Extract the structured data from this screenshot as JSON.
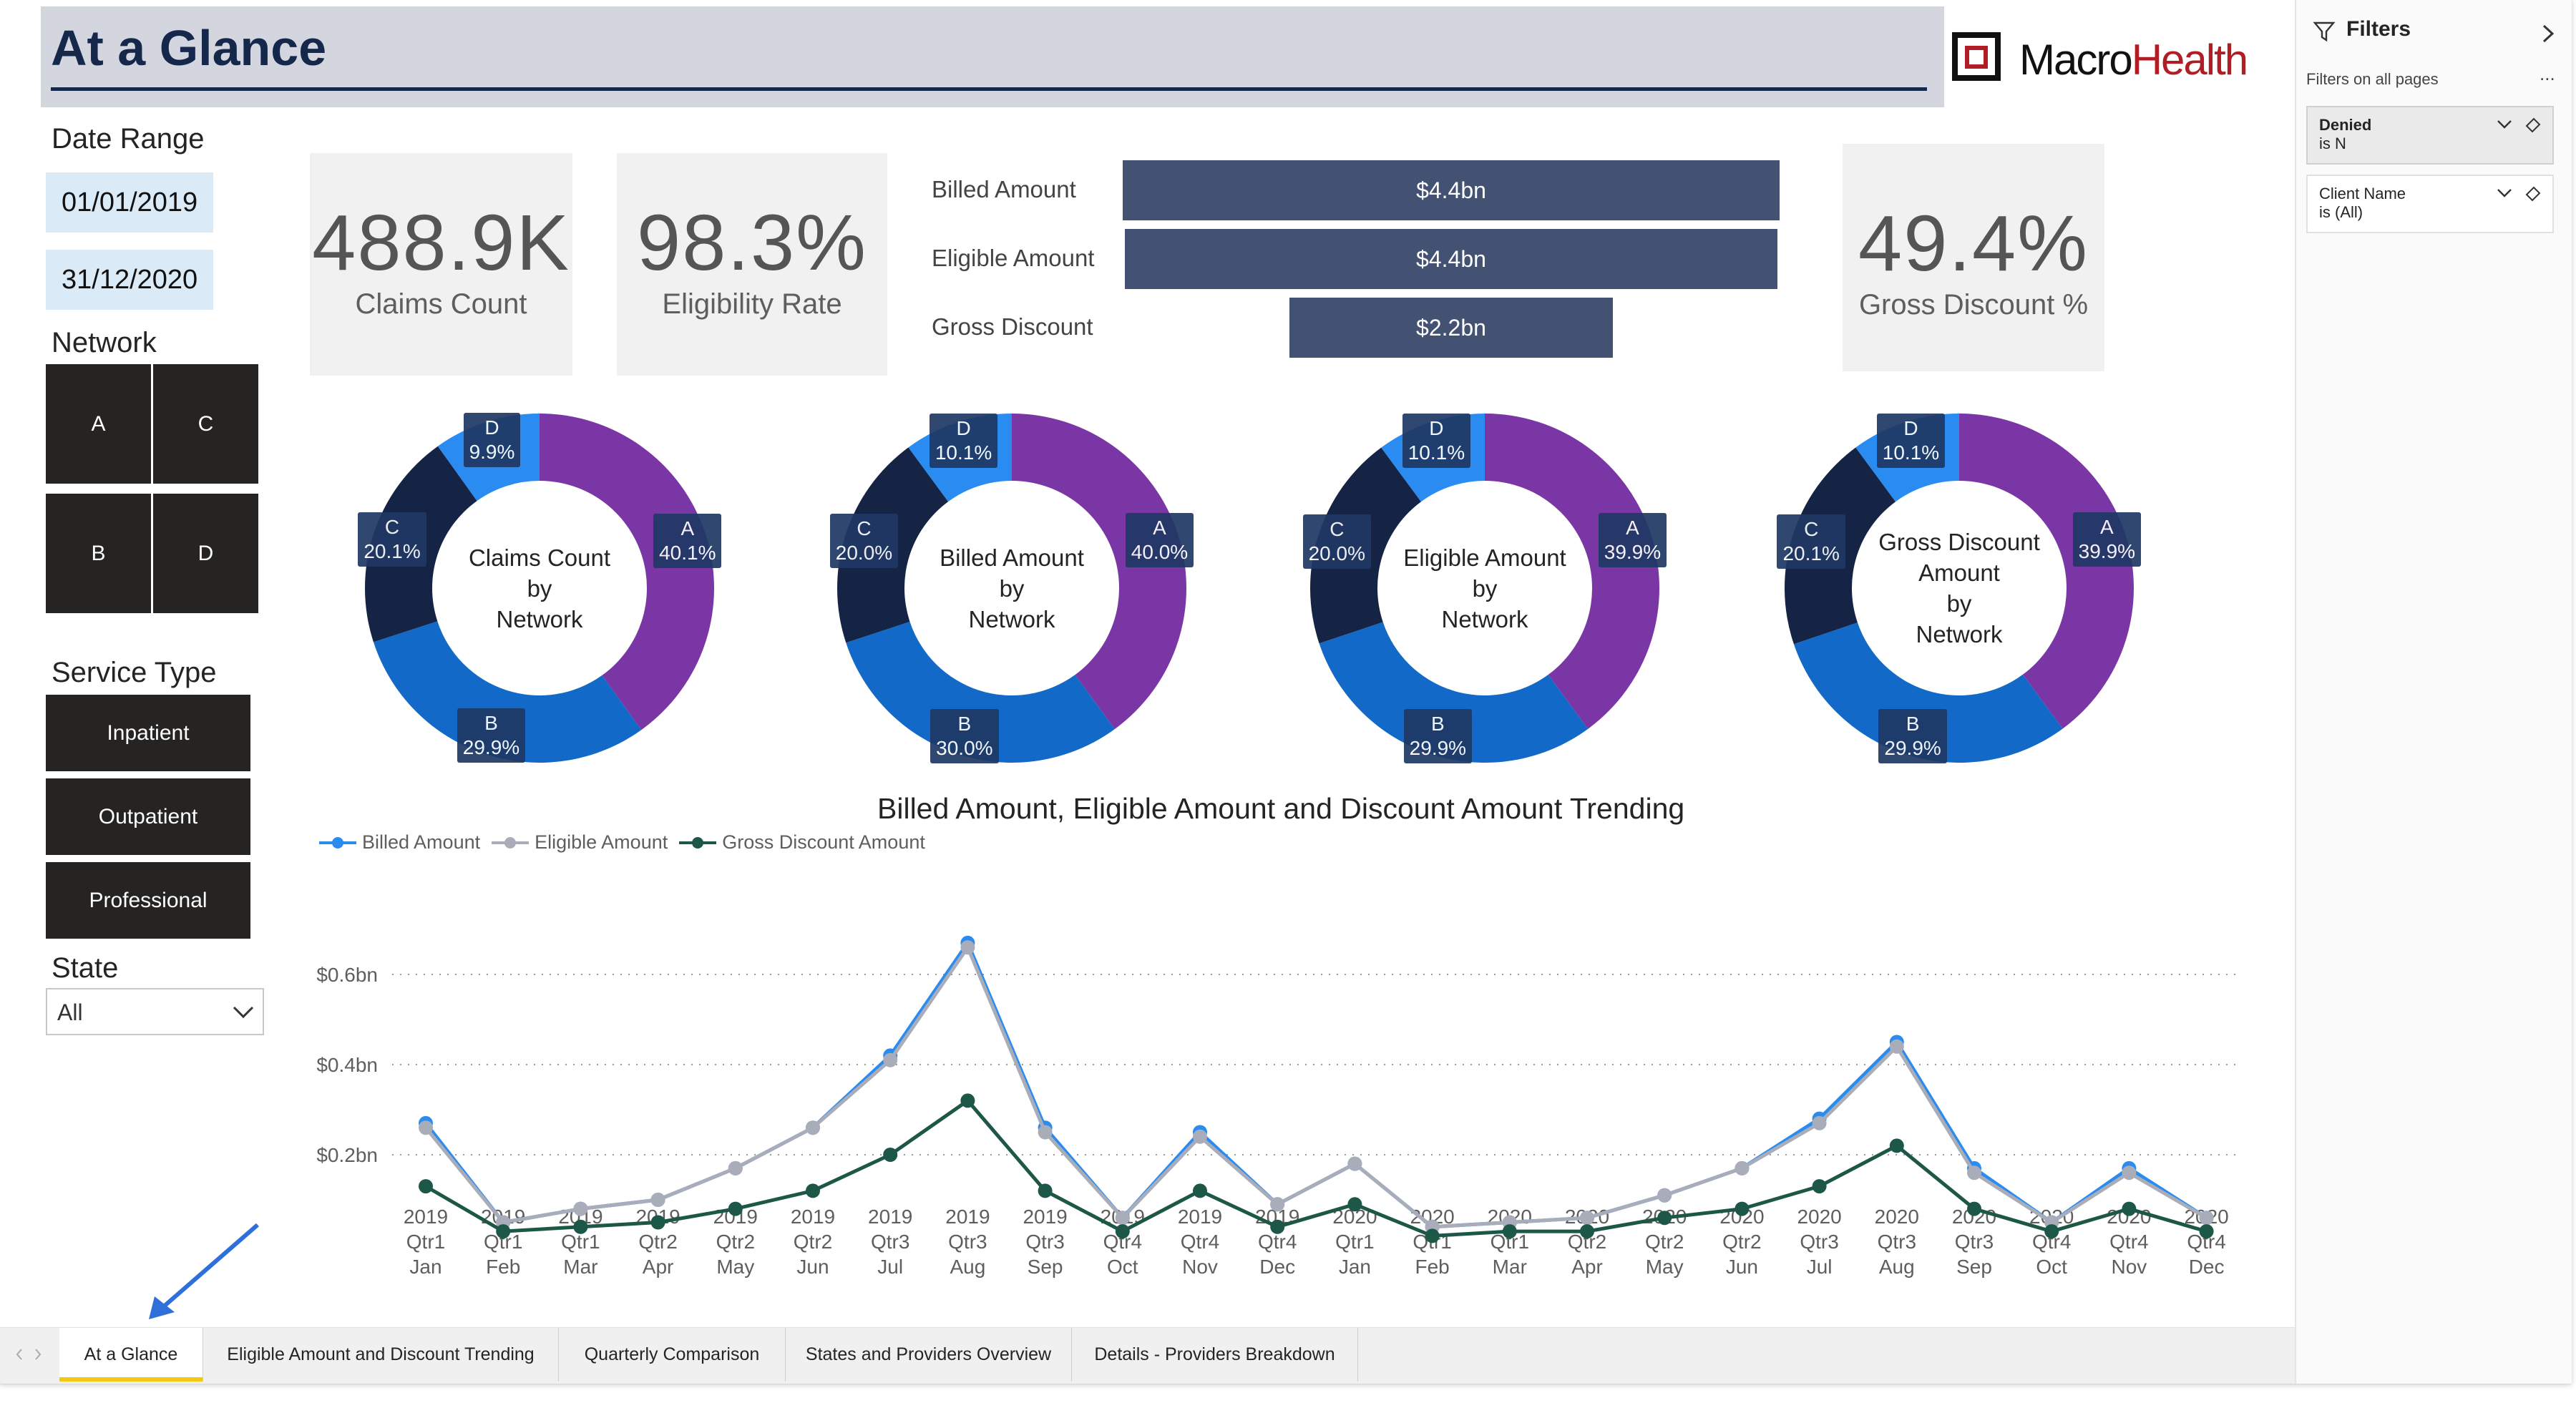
{
  "page": {
    "title": "At a Glance"
  },
  "logo": {
    "text_dark": "Macro",
    "text_red": "Health"
  },
  "date_range": {
    "label": "Date Range",
    "start": "01/01/2019",
    "end": "31/12/2020"
  },
  "network": {
    "label": "Network",
    "tiles": [
      "A",
      "C",
      "B",
      "D"
    ]
  },
  "service_type": {
    "label": "Service Type",
    "options": [
      "Inpatient",
      "Outpatient",
      "Professional"
    ]
  },
  "state": {
    "label": "State",
    "value": "All"
  },
  "kpis": {
    "claims": {
      "value": "488.9K",
      "caption": "Claims Count"
    },
    "eligibility": {
      "value": "98.3%",
      "caption": "Eligibility Rate"
    },
    "gross_pct": {
      "value": "49.4%",
      "caption": "Gross Discount %"
    }
  },
  "funnel": {
    "rows": [
      {
        "label": "Billed Amount",
        "value": "$4.4bn",
        "amount": 4.4
      },
      {
        "label": "Eligible Amount",
        "value": "$4.4bn",
        "amount": 4.37
      },
      {
        "label": "Gross Discount",
        "value": "$2.2bn",
        "amount": 2.17
      }
    ]
  },
  "colors": {
    "A": "#7b36a6",
    "B": "#1269c7",
    "C": "#152444",
    "D": "#2a8cf0",
    "billed": "#2a8cf0",
    "eligible": "#a8adb9",
    "discount": "#1d5747"
  },
  "donuts": [
    {
      "title": [
        "Claims Count",
        "by",
        "Network"
      ],
      "segments": [
        {
          "k": "A",
          "pct": 40.1,
          "label": "40.1%"
        },
        {
          "k": "B",
          "pct": 29.9,
          "label": "29.9%"
        },
        {
          "k": "C",
          "pct": 20.1,
          "label": "20.1%"
        },
        {
          "k": "D",
          "pct": 9.9,
          "label": "9.9%"
        }
      ]
    },
    {
      "title": [
        "Billed Amount",
        "by",
        "Network"
      ],
      "segments": [
        {
          "k": "A",
          "pct": 40.0,
          "label": "40.0%"
        },
        {
          "k": "B",
          "pct": 30.0,
          "label": "30.0%"
        },
        {
          "k": "C",
          "pct": 20.0,
          "label": "20.0%"
        },
        {
          "k": "D",
          "pct": 10.1,
          "label": "10.1%"
        }
      ]
    },
    {
      "title": [
        "Eligible Amount",
        "by",
        "Network"
      ],
      "segments": [
        {
          "k": "A",
          "pct": 39.9,
          "label": "39.9%"
        },
        {
          "k": "B",
          "pct": 29.9,
          "label": "29.9%"
        },
        {
          "k": "C",
          "pct": 20.0,
          "label": "20.0%"
        },
        {
          "k": "D",
          "pct": 10.1,
          "label": "10.1%"
        }
      ]
    },
    {
      "title": [
        "Gross Discount",
        "Amount",
        "by",
        "Network"
      ],
      "segments": [
        {
          "k": "A",
          "pct": 39.9,
          "label": "39.9%"
        },
        {
          "k": "B",
          "pct": 29.9,
          "label": "29.9%"
        },
        {
          "k": "C",
          "pct": 20.1,
          "label": "20.1%"
        },
        {
          "k": "D",
          "pct": 10.1,
          "label": "10.1%"
        }
      ]
    }
  ],
  "chart_data": {
    "type": "line",
    "title": "Billed Amount, Eligible Amount and Discount Amount Trending",
    "ylabel": "",
    "ylim": [
      0,
      0.7
    ],
    "yticks": [
      {
        "v": 0.2,
        "label": "$0.2bn"
      },
      {
        "v": 0.4,
        "label": "$0.4bn"
      },
      {
        "v": 0.6,
        "label": "$0.6bn"
      }
    ],
    "x": [
      [
        "2019",
        "Qtr1",
        "Jan"
      ],
      [
        "2019",
        "Qtr1",
        "Feb"
      ],
      [
        "2019",
        "Qtr1",
        "Mar"
      ],
      [
        "2019",
        "Qtr2",
        "Apr"
      ],
      [
        "2019",
        "Qtr2",
        "May"
      ],
      [
        "2019",
        "Qtr2",
        "Jun"
      ],
      [
        "2019",
        "Qtr3",
        "Jul"
      ],
      [
        "2019",
        "Qtr3",
        "Aug"
      ],
      [
        "2019",
        "Qtr3",
        "Sep"
      ],
      [
        "2019",
        "Qtr4",
        "Oct"
      ],
      [
        "2019",
        "Qtr4",
        "Nov"
      ],
      [
        "2019",
        "Qtr4",
        "Dec"
      ],
      [
        "2020",
        "Qtr1",
        "Jan"
      ],
      [
        "2020",
        "Qtr1",
        "Feb"
      ],
      [
        "2020",
        "Qtr1",
        "Mar"
      ],
      [
        "2020",
        "Qtr2",
        "Apr"
      ],
      [
        "2020",
        "Qtr2",
        "May"
      ],
      [
        "2020",
        "Qtr2",
        "Jun"
      ],
      [
        "2020",
        "Qtr3",
        "Jul"
      ],
      [
        "2020",
        "Qtr3",
        "Aug"
      ],
      [
        "2020",
        "Qtr3",
        "Sep"
      ],
      [
        "2020",
        "Qtr4",
        "Oct"
      ],
      [
        "2020",
        "Qtr4",
        "Nov"
      ],
      [
        "2020",
        "Qtr4",
        "Dec"
      ]
    ],
    "series": [
      {
        "name": "Billed Amount",
        "color": "#2a8cf0",
        "values": [
          0.27,
          0.05,
          0.08,
          0.1,
          0.17,
          0.26,
          0.42,
          0.67,
          0.26,
          0.06,
          0.25,
          0.09,
          0.18,
          0.04,
          0.05,
          0.06,
          0.11,
          0.17,
          0.28,
          0.45,
          0.17,
          0.05,
          0.17,
          0.06
        ]
      },
      {
        "name": "Eligible Amount",
        "color": "#a8adb9",
        "values": [
          0.26,
          0.05,
          0.08,
          0.1,
          0.17,
          0.26,
          0.41,
          0.66,
          0.25,
          0.06,
          0.24,
          0.09,
          0.18,
          0.04,
          0.05,
          0.06,
          0.11,
          0.17,
          0.27,
          0.44,
          0.16,
          0.05,
          0.16,
          0.06
        ]
      },
      {
        "name": "Gross Discount Amount",
        "color": "#1d5747",
        "values": [
          0.13,
          0.03,
          0.04,
          0.05,
          0.08,
          0.12,
          0.2,
          0.32,
          0.12,
          0.03,
          0.12,
          0.04,
          0.09,
          0.02,
          0.03,
          0.03,
          0.06,
          0.08,
          0.13,
          0.22,
          0.08,
          0.03,
          0.08,
          0.03
        ]
      }
    ]
  },
  "tabs": [
    "At a Glance",
    "Eligible Amount and Discount Trending",
    "Quarterly Comparison",
    "States and Providers Overview",
    "Details - Providers Breakdown"
  ],
  "filters": {
    "header": "Filters",
    "subheader": "Filters on all pages",
    "more": "...",
    "cards": [
      {
        "name": "Denied",
        "value": "is N"
      },
      {
        "name": "Client Name",
        "value": "is (All)"
      }
    ]
  }
}
